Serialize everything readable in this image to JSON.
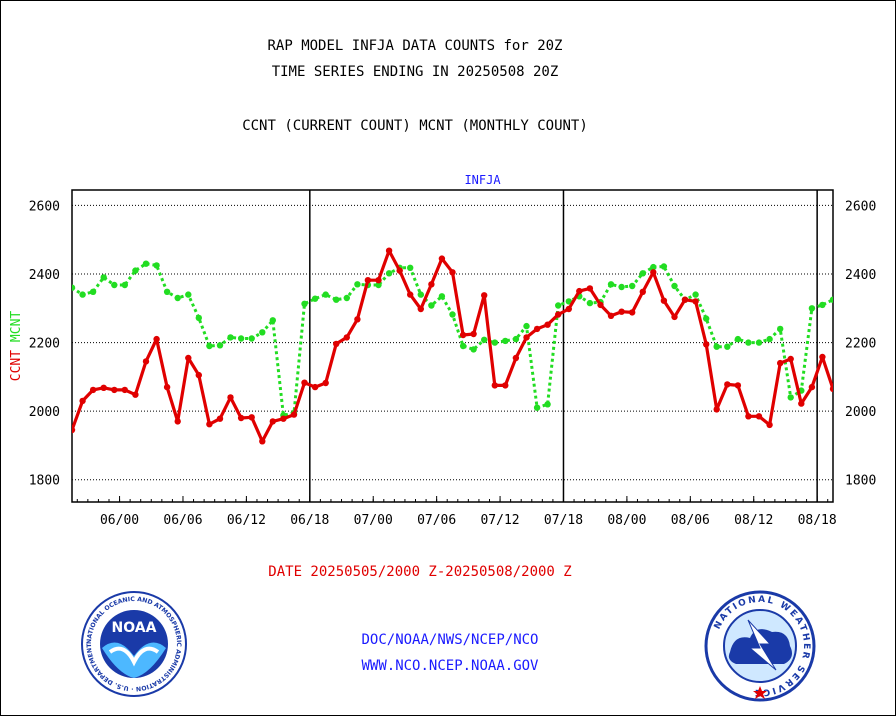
{
  "title_lines": [
    "RAP MODEL INFJA DATA COUNTS for 20Z",
    "TIME SERIES ENDING IN 20250508 20Z"
  ],
  "subtitle": "CCNT (CURRENT COUNT) MCNT (MONTHLY COUNT)",
  "date_range": "DATE 20250505/2000 Z-20250508/2000 Z",
  "footer": {
    "line1": "DOC/NOAA/NWS/NCEP/NCO",
    "line2": "WWW.NCO.NCEP.NOAA.GOV"
  },
  "logos": {
    "noaa": {
      "text": "NOAA",
      "ring_text": "NATIONAL OCEANIC AND ATMOSPHERIC ADMINISTRATION · U.S. DEPARTMENT OF COMMERCE"
    },
    "nws": {
      "ring_text": "NATIONAL WEATHER SERVICE"
    }
  },
  "colors": {
    "ccnt": "#e00000",
    "mcnt": "#22dd22",
    "plot_title": "#1a1aff",
    "date": "#e00000",
    "footer": "#1a1aff"
  },
  "chart_data": {
    "type": "line",
    "plot_title": "INFJA",
    "ylabel_parts": [
      {
        "text": "CCNT",
        "color": "#e00000"
      },
      {
        "text": "MCNT",
        "color": "#22dd22"
      }
    ],
    "ylim": [
      1735,
      2645
    ],
    "yticks": [
      1800,
      2000,
      2200,
      2400,
      2600
    ],
    "x_tick_labels": [
      "06/00",
      "06/06",
      "06/12",
      "06/18",
      "07/00",
      "07/06",
      "07/12",
      "07/18",
      "08/00",
      "08/06",
      "08/12",
      "08/18"
    ],
    "x_tick_hours": [
      6,
      12,
      18,
      24,
      30,
      36,
      42,
      48,
      54,
      60,
      66,
      72
    ],
    "x_start_hour": 1.5,
    "x_end_hour": 73.5,
    "day_boundaries": [
      24,
      48,
      72
    ],
    "grid": true,
    "series": [
      {
        "name": "CCNT",
        "color": "#e00000",
        "style": "solid",
        "start_hour": 1.5,
        "values": [
          1945,
          2030,
          2062,
          2068,
          2062,
          2062,
          2048,
          2145,
          2210,
          2070,
          1970,
          2155,
          2105,
          1962,
          1978,
          2040,
          1980,
          1982,
          1912,
          1970,
          1978,
          1990,
          2083,
          2070,
          2082,
          2196,
          2215,
          2268,
          2382,
          2382,
          2468,
          2410,
          2340,
          2298,
          2370,
          2445,
          2405,
          2222,
          2225,
          2338,
          2075,
          2075,
          2155,
          2215,
          2240,
          2252,
          2282,
          2298,
          2350,
          2358,
          2310,
          2278,
          2290,
          2288,
          2348,
          2405,
          2322,
          2275,
          2325,
          2320,
          2195,
          2005,
          2078,
          2075,
          1985,
          1985,
          1960,
          2140,
          2152,
          2022,
          2070,
          2158,
          2065
        ]
      },
      {
        "name": "MCNT",
        "color": "#22dd22",
        "style": "dashed",
        "start_hour": 1.5,
        "values": [
          2360,
          2340,
          2348,
          2390,
          2368,
          2368,
          2410,
          2430,
          2425,
          2348,
          2330,
          2340,
          2272,
          2190,
          2192,
          2215,
          2212,
          2212,
          2230,
          2265,
          1988,
          1995,
          2313,
          2328,
          2340,
          2325,
          2330,
          2370,
          2368,
          2368,
          2402,
          2418,
          2418,
          2340,
          2308,
          2335,
          2282,
          2190,
          2180,
          2208,
          2200,
          2205,
          2210,
          2248,
          2010,
          2020,
          2308,
          2320,
          2335,
          2315,
          2318,
          2370,
          2362,
          2365,
          2402,
          2420,
          2422,
          2365,
          2325,
          2340,
          2270,
          2188,
          2188,
          2210,
          2200,
          2200,
          2210,
          2240,
          2040,
          2060,
          2300,
          2310,
          2325
        ]
      }
    ]
  }
}
